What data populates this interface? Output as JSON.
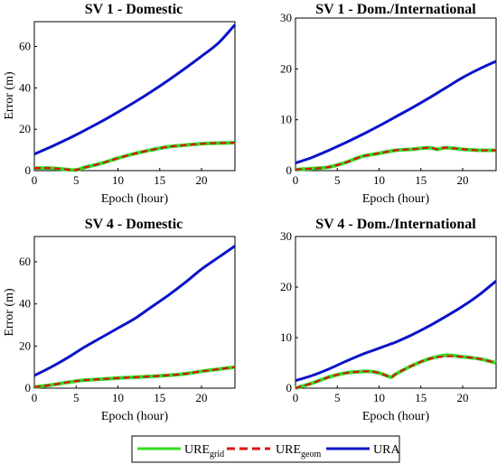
{
  "colors": {
    "ure_grid": "#33dd22",
    "ure_geom": "#dd1111",
    "ura": "#0a14c8"
  },
  "legend": {
    "items": [
      {
        "key": "ure_grid",
        "label_main": "URE",
        "label_sub": "grid",
        "style": "solid"
      },
      {
        "key": "ure_geom",
        "label_main": "URE",
        "label_sub": "geom",
        "style": "dashed"
      },
      {
        "key": "ura",
        "label_main": "URA",
        "label_sub": "",
        "style": "solid"
      }
    ]
  },
  "chart_data": [
    {
      "type": "line",
      "title": "SV 1 - Domestic",
      "xlabel": "Epoch (hour)",
      "ylabel": "Error (m)",
      "xlim": [
        0,
        24
      ],
      "ylim": [
        0,
        72
      ],
      "xticks": [
        0,
        5,
        10,
        15,
        20
      ],
      "yticks": [
        0,
        20,
        40,
        60
      ],
      "x": [
        0,
        2,
        4,
        5,
        6,
        8,
        10,
        12,
        14,
        16,
        18,
        20,
        22,
        24
      ],
      "series": [
        {
          "key": "ure_grid",
          "name": "URE_grid",
          "values": [
            1.2,
            1.2,
            0.5,
            0.3,
            1.5,
            3.5,
            6,
            8.2,
            10,
            11.5,
            12.3,
            13,
            13.3,
            13.5
          ]
        },
        {
          "key": "ure_geom",
          "name": "URE_geom",
          "values": [
            1.2,
            1.2,
            0.5,
            0.3,
            1.5,
            3.5,
            6,
            8.2,
            10,
            11.5,
            12.3,
            13,
            13.3,
            13.5
          ]
        },
        {
          "key": "ura",
          "name": "URA",
          "values": [
            8,
            11.5,
            15.3,
            17.3,
            19.4,
            23.7,
            28.3,
            33.1,
            38.2,
            43.6,
            49.3,
            55.3,
            61.6,
            70.5
          ]
        }
      ]
    },
    {
      "type": "line",
      "title": "SV 1 - Dom./International",
      "xlabel": "Epoch (hour)",
      "ylabel": "",
      "xlim": [
        0,
        24
      ],
      "ylim": [
        0,
        30
      ],
      "xticks": [
        0,
        5,
        10,
        15,
        20
      ],
      "yticks": [
        0,
        10,
        20,
        30
      ],
      "x": [
        0,
        2,
        4,
        6,
        8,
        10,
        12,
        14,
        16,
        17,
        18,
        20,
        22,
        24
      ],
      "series": [
        {
          "key": "ure_grid",
          "name": "URE_grid",
          "values": [
            0.2,
            0.4,
            0.7,
            1.6,
            2.8,
            3.4,
            4.0,
            4.2,
            4.5,
            4.2,
            4.5,
            4.2,
            4.0,
            4.0
          ]
        },
        {
          "key": "ure_geom",
          "name": "URE_geom",
          "values": [
            0.2,
            0.4,
            0.7,
            1.6,
            2.8,
            3.4,
            4.0,
            4.2,
            4.5,
            4.2,
            4.5,
            4.2,
            4.0,
            4.0
          ]
        },
        {
          "key": "ura",
          "name": "URA",
          "values": [
            1.5,
            2.6,
            4.0,
            5.5,
            7.1,
            8.8,
            10.6,
            12.4,
            14.3,
            15.3,
            16.3,
            18.3,
            20.0,
            21.5
          ]
        }
      ]
    },
    {
      "type": "line",
      "title": "SV 4 - Domestic",
      "xlabel": "Epoch (hour)",
      "ylabel": "Error (m)",
      "xlim": [
        0,
        24
      ],
      "ylim": [
        0,
        72
      ],
      "xticks": [
        0,
        5,
        10,
        15,
        20
      ],
      "yticks": [
        0,
        20,
        40,
        60
      ],
      "x": [
        0,
        2,
        4,
        6,
        8,
        10,
        12,
        14,
        16,
        18,
        20,
        22,
        24
      ],
      "series": [
        {
          "key": "ure_grid",
          "name": "URE_grid",
          "values": [
            0.5,
            1.5,
            2.8,
            3.8,
            4.3,
            4.8,
            5.2,
            5.6,
            6.1,
            6.8,
            8.0,
            9.0,
            10.0
          ]
        },
        {
          "key": "ure_geom",
          "name": "URE_geom",
          "values": [
            0.5,
            1.5,
            2.8,
            3.8,
            4.3,
            4.8,
            5.2,
            5.6,
            6.1,
            6.8,
            8.0,
            9.0,
            10.0
          ]
        },
        {
          "key": "ura",
          "name": "URA",
          "values": [
            6,
            10,
            14.5,
            19.5,
            24,
            28.5,
            33,
            38.5,
            44,
            50,
            56.5,
            62,
            67.5
          ]
        }
      ]
    },
    {
      "type": "line",
      "title": "SV 4 - Dom./International",
      "xlabel": "Epoch (hour)",
      "ylabel": "",
      "xlim": [
        0,
        24
      ],
      "ylim": [
        0,
        30
      ],
      "xticks": [
        0,
        5,
        10,
        15,
        20
      ],
      "yticks": [
        0,
        10,
        20,
        30
      ],
      "x": [
        0,
        2,
        4,
        6,
        8,
        9,
        10,
        11,
        11.5,
        12,
        14,
        16,
        18,
        20,
        22,
        24
      ],
      "series": [
        {
          "key": "ure_grid",
          "name": "URE_grid",
          "values": [
            0,
            1.0,
            2.2,
            3.0,
            3.3,
            3.3,
            3.0,
            2.4,
            2.2,
            2.8,
            4.5,
            5.8,
            6.5,
            6.2,
            5.8,
            5.0
          ]
        },
        {
          "key": "ure_geom",
          "name": "URE_geom",
          "values": [
            0,
            1.0,
            2.2,
            3.0,
            3.3,
            3.3,
            3.0,
            2.4,
            2.2,
            2.8,
            4.5,
            5.8,
            6.3,
            6.2,
            5.8,
            5.0
          ]
        },
        {
          "key": "ura",
          "name": "URA",
          "values": [
            1.5,
            2.5,
            3.8,
            5.3,
            6.7,
            7.3,
            7.9,
            8.5,
            8.8,
            9.1,
            10.6,
            12.3,
            14.2,
            16.2,
            18.5,
            21.2
          ]
        }
      ]
    }
  ]
}
